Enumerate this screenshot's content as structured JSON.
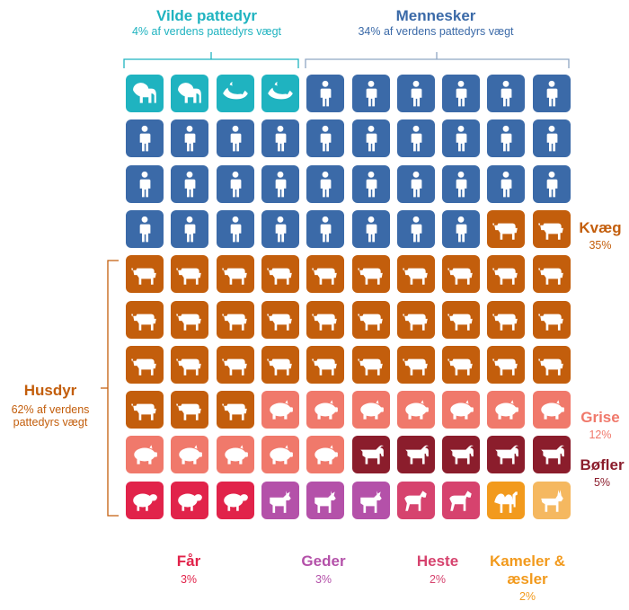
{
  "categories": {
    "vilde": {
      "title": "Vilde pattedyr",
      "subtitle": "4% af verdens pattedyrs vægt",
      "color": "#1fb3c0"
    },
    "mennesker": {
      "title": "Mennesker",
      "subtitle": "34% af verdens pattedyrs vægt",
      "color": "#3b6aa8"
    },
    "kvaeg": {
      "title": "Kvæg",
      "pct": "35%",
      "color": "#c35e0c"
    },
    "husdyr": {
      "title": "Husdyr",
      "subtitle": "62% af verdens pattedyrs vægt",
      "color": "#c35e0c"
    },
    "grise": {
      "title": "Grise",
      "pct": "12%",
      "color": "#f0796b"
    },
    "bofler": {
      "title": "Bøfler",
      "pct": "5%",
      "color": "#8b1d2c"
    },
    "faar": {
      "title": "Får",
      "pct": "3%",
      "color": "#e1234a"
    },
    "geder": {
      "title": "Geder",
      "pct": "3%",
      "color": "#b451a9"
    },
    "heste": {
      "title": "Heste",
      "pct": "2%",
      "color": "#d6436e"
    },
    "kameler": {
      "title": "Kameler & æsler",
      "pct": "2%",
      "color": "#f29a1d"
    }
  },
  "grid": [
    [
      "elephant",
      "elephant",
      "whale",
      "whale",
      "human",
      "human",
      "human",
      "human",
      "human",
      "human"
    ],
    [
      "human",
      "human",
      "human",
      "human",
      "human",
      "human",
      "human",
      "human",
      "human",
      "human"
    ],
    [
      "human",
      "human",
      "human",
      "human",
      "human",
      "human",
      "human",
      "human",
      "human",
      "human"
    ],
    [
      "human",
      "human",
      "human",
      "human",
      "human",
      "human",
      "human",
      "human",
      "cattle",
      "cattle"
    ],
    [
      "cattle",
      "cattle",
      "cattle",
      "cattle",
      "cattle",
      "cattle",
      "cattle",
      "cattle",
      "cattle",
      "cattle"
    ],
    [
      "cattle",
      "cattle",
      "cattle",
      "cattle",
      "cattle",
      "cattle",
      "cattle",
      "cattle",
      "cattle",
      "cattle"
    ],
    [
      "cattle",
      "cattle",
      "cattle",
      "cattle",
      "cattle",
      "cattle",
      "cattle",
      "cattle",
      "cattle",
      "cattle"
    ],
    [
      "cattle",
      "cattle",
      "cattle",
      "pig",
      "pig",
      "pig",
      "pig",
      "pig",
      "pig",
      "pig"
    ],
    [
      "pig",
      "pig",
      "pig",
      "pig",
      "pig",
      "buffalo",
      "buffalo",
      "buffalo",
      "buffalo",
      "buffalo"
    ],
    [
      "sheep",
      "sheep",
      "sheep",
      "goat",
      "goat",
      "goat",
      "horse",
      "horse",
      "camel",
      "donkey"
    ]
  ],
  "icon_colors": {
    "elephant": "#1fb3c0",
    "whale": "#1fb3c0",
    "human": "#3b6aa8",
    "cattle": "#c35e0c",
    "pig": "#f0796b",
    "buffalo": "#8b1d2c",
    "sheep": "#e1234a",
    "goat": "#b451a9",
    "horse": "#d6436e",
    "camel": "#f29a1d",
    "donkey": "#f5b860"
  }
}
